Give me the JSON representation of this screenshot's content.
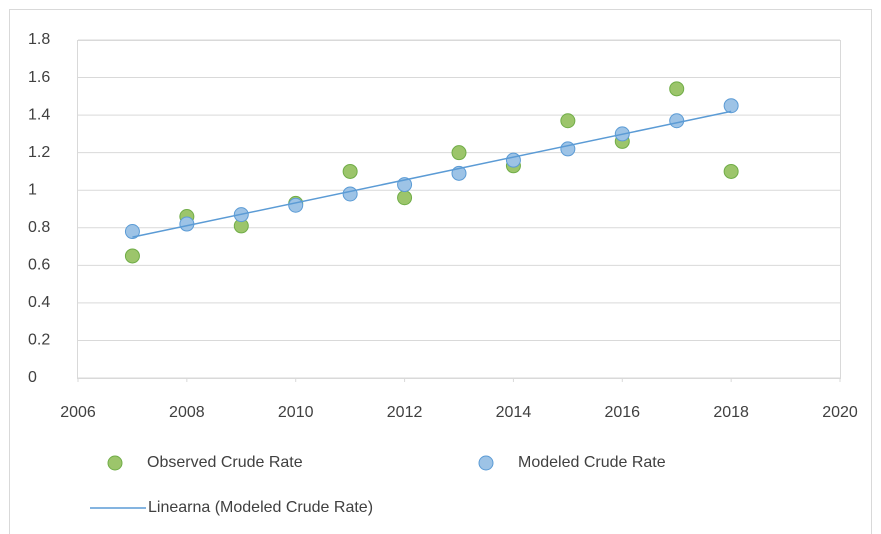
{
  "chart_data": {
    "type": "scatter",
    "x": [
      2007,
      2008,
      2009,
      2010,
      2011,
      2012,
      2013,
      2014,
      2015,
      2016,
      2017,
      2018
    ],
    "series": [
      {
        "name": "Observed Crude Rate",
        "color": "#9cc56b",
        "edgecolor": "#70ad47",
        "values": [
          0.65,
          0.86,
          0.81,
          0.93,
          1.1,
          0.96,
          1.2,
          1.13,
          1.37,
          1.26,
          1.54,
          1.1
        ]
      },
      {
        "name": "Modeled Crude Rate",
        "color": "#9dc3e6",
        "edgecolor": "#5b9bd5",
        "values": [
          0.78,
          0.82,
          0.87,
          0.92,
          0.98,
          1.03,
          1.09,
          1.16,
          1.22,
          1.3,
          1.37,
          1.45
        ]
      },
      {
        "name": "Linearna (Modeled Crude Rate)",
        "type": "line",
        "color": "#5b9bd5",
        "x": [
          2007,
          2018
        ],
        "values": [
          0.75,
          1.42
        ]
      }
    ],
    "xlim": [
      2006,
      2020
    ],
    "xticks": [
      2006,
      2008,
      2010,
      2012,
      2014,
      2016,
      2018,
      2020
    ],
    "ylim": [
      0,
      1.8
    ],
    "yticks": [
      0,
      0.2,
      0.4,
      0.6,
      0.8,
      1,
      1.2,
      1.4,
      1.6,
      1.8
    ],
    "grid": true,
    "legend": "bottom"
  }
}
